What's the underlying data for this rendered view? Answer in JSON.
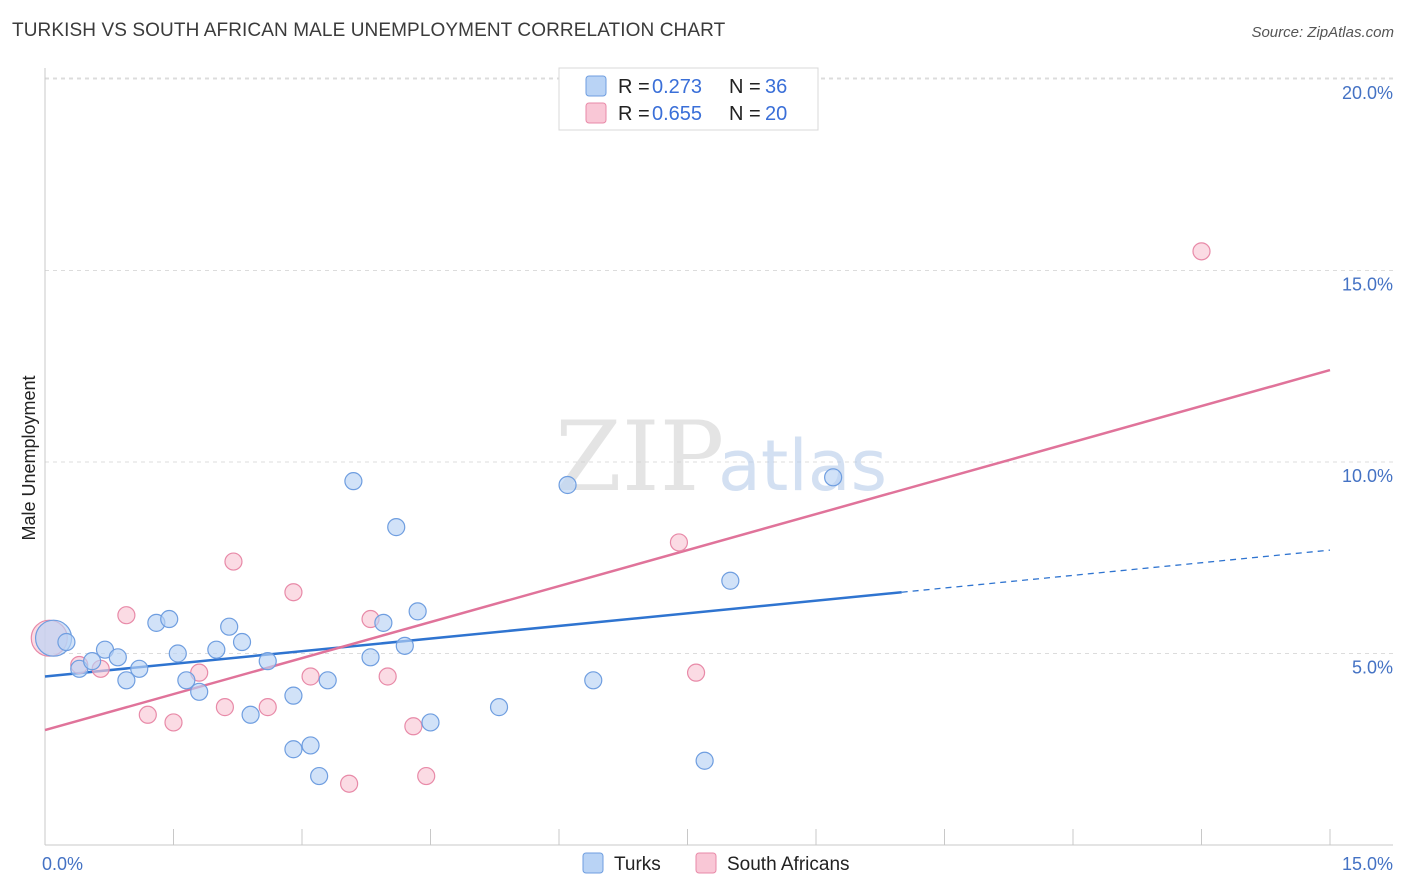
{
  "title": "TURKISH VS SOUTH AFRICAN MALE UNEMPLOYMENT CORRELATION CHART",
  "source": "Source: ZipAtlas.com",
  "watermark": {
    "zip": "ZIP",
    "atlas": "atlas"
  },
  "colors": {
    "turks_fill": "#b9d3f5",
    "turks_stroke": "#6f9ee0",
    "turks_line": "#2f74d0",
    "sa_fill": "#f9c7d6",
    "sa_stroke": "#e88aa8",
    "sa_line": "#e0739a",
    "grid": "#dcdcdc",
    "axis_label": "#4472c4"
  },
  "legend": {
    "rows": [
      {
        "r_label": "R = ",
        "r_value": "0.273",
        "n_label": "N = ",
        "n_value": "36"
      },
      {
        "r_label": "R = ",
        "r_value": "0.655",
        "n_label": "N = ",
        "n_value": "20"
      }
    ]
  },
  "chart_data": {
    "type": "scatter",
    "title": "TURKISH VS SOUTH AFRICAN MALE UNEMPLOYMENT CORRELATION CHART",
    "xlabel": "",
    "ylabel": "Male Unemployment",
    "xlim": [
      0,
      15
    ],
    "ylim": [
      0,
      20
    ],
    "x_tick_labels": [
      "0.0%",
      "15.0%"
    ],
    "y_ticks": [
      5,
      10,
      15,
      20
    ],
    "y_tick_labels": [
      "5.0%",
      "10.0%",
      "15.0%",
      "20.0%"
    ],
    "grid": true,
    "legend_position": "bottom",
    "series": [
      {
        "name": "Turks",
        "r": 0.273,
        "n": 36,
        "trend": {
          "x0": 0,
          "y0": 4.4,
          "x1": 10.0,
          "y1": 6.6,
          "dashed_to_x": 15.0,
          "dashed_to_y": 7.7
        },
        "points": [
          {
            "x": 0.1,
            "y": 5.4,
            "big": true
          },
          {
            "x": 0.25,
            "y": 5.3
          },
          {
            "x": 0.4,
            "y": 4.6
          },
          {
            "x": 0.55,
            "y": 4.8
          },
          {
            "x": 0.7,
            "y": 5.1
          },
          {
            "x": 0.85,
            "y": 4.9
          },
          {
            "x": 0.95,
            "y": 4.3
          },
          {
            "x": 1.1,
            "y": 4.6
          },
          {
            "x": 1.3,
            "y": 5.8
          },
          {
            "x": 1.45,
            "y": 5.9
          },
          {
            "x": 1.55,
            "y": 5.0
          },
          {
            "x": 1.65,
            "y": 4.3
          },
          {
            "x": 1.8,
            "y": 4.0
          },
          {
            "x": 2.0,
            "y": 5.1
          },
          {
            "x": 2.15,
            "y": 5.7
          },
          {
            "x": 2.3,
            "y": 5.3
          },
          {
            "x": 2.4,
            "y": 3.4
          },
          {
            "x": 2.6,
            "y": 4.8
          },
          {
            "x": 2.9,
            "y": 2.5
          },
          {
            "x": 2.9,
            "y": 3.9
          },
          {
            "x": 3.1,
            "y": 2.6
          },
          {
            "x": 3.2,
            "y": 1.8
          },
          {
            "x": 3.3,
            "y": 4.3
          },
          {
            "x": 3.6,
            "y": 9.5
          },
          {
            "x": 3.8,
            "y": 4.9
          },
          {
            "x": 3.95,
            "y": 5.8
          },
          {
            "x": 4.1,
            "y": 8.3
          },
          {
            "x": 4.2,
            "y": 5.2
          },
          {
            "x": 4.35,
            "y": 6.1
          },
          {
            "x": 4.5,
            "y": 3.2
          },
          {
            "x": 5.3,
            "y": 3.6
          },
          {
            "x": 6.1,
            "y": 9.4
          },
          {
            "x": 6.4,
            "y": 4.3
          },
          {
            "x": 7.7,
            "y": 2.2
          },
          {
            "x": 8.0,
            "y": 6.9
          },
          {
            "x": 9.2,
            "y": 9.6
          }
        ]
      },
      {
        "name": "South Africans",
        "r": 0.655,
        "n": 20,
        "trend": {
          "x0": 0,
          "y0": 3.0,
          "x1": 15.0,
          "y1": 12.4
        },
        "points": [
          {
            "x": 0.05,
            "y": 5.4,
            "big": true
          },
          {
            "x": 0.4,
            "y": 4.7
          },
          {
            "x": 0.65,
            "y": 4.6
          },
          {
            "x": 0.95,
            "y": 6.0
          },
          {
            "x": 1.2,
            "y": 3.4
          },
          {
            "x": 1.5,
            "y": 3.2
          },
          {
            "x": 1.8,
            "y": 4.5
          },
          {
            "x": 2.1,
            "y": 3.6
          },
          {
            "x": 2.2,
            "y": 7.4
          },
          {
            "x": 2.6,
            "y": 3.6
          },
          {
            "x": 2.9,
            "y": 6.6
          },
          {
            "x": 3.1,
            "y": 4.4
          },
          {
            "x": 3.55,
            "y": 1.6
          },
          {
            "x": 3.8,
            "y": 5.9
          },
          {
            "x": 4.0,
            "y": 4.4
          },
          {
            "x": 4.3,
            "y": 3.1
          },
          {
            "x": 4.45,
            "y": 1.8
          },
          {
            "x": 7.4,
            "y": 7.9
          },
          {
            "x": 7.6,
            "y": 4.5
          },
          {
            "x": 13.5,
            "y": 15.5
          }
        ]
      }
    ]
  }
}
